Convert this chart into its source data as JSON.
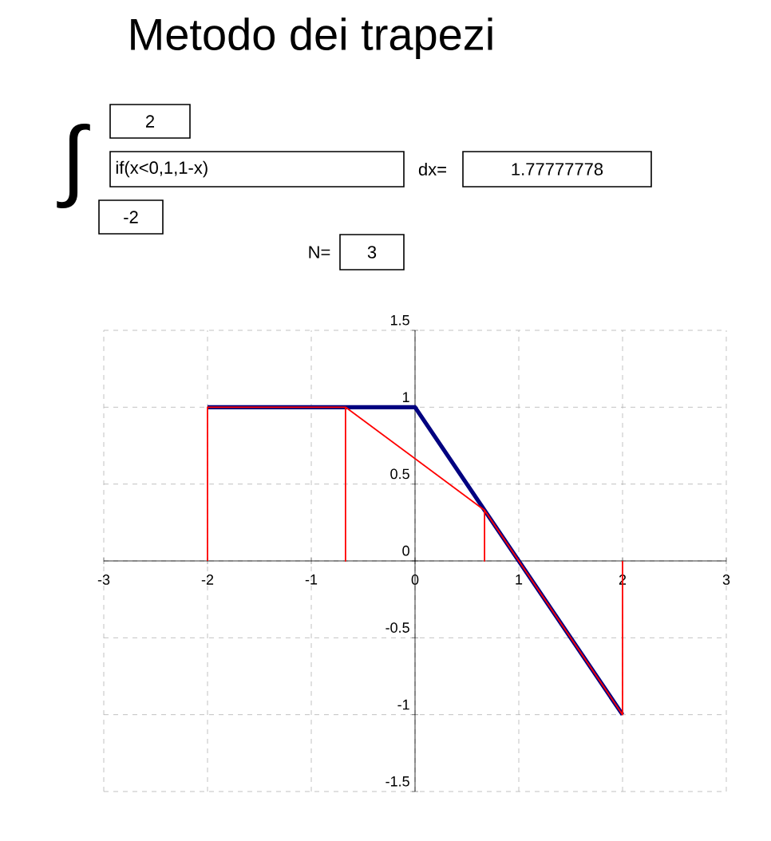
{
  "chart_data": {
    "type": "line",
    "title": "Metodo dei trapezi",
    "annotations": [
      "∫",
      "2",
      "if(x<0,1,1-x)",
      "dx=",
      "1.77777778",
      "-2",
      "N=",
      "3"
    ],
    "series": [
      {
        "color": "#000080",
        "x": [
          -2,
          0,
          2
        ],
        "values": [
          1,
          1,
          -1
        ]
      },
      {
        "color": "#ff0000",
        "x": [
          -2,
          -2,
          -0.67,
          -0.67,
          -0.67,
          0.67,
          0.67,
          0.67,
          2,
          2
        ],
        "values": [
          0,
          1,
          1,
          0,
          1,
          0.33,
          0,
          0.33,
          -1,
          0
        ]
      }
    ],
    "xlim": [
      -3,
      3
    ],
    "ylim": [
      -1.5,
      1.5
    ],
    "xticks": [
      -3,
      -2,
      -1,
      0,
      1,
      2,
      3
    ],
    "yticks": [
      -1.5,
      -1,
      -0.5,
      0,
      0.5,
      1,
      1.5
    ],
    "grid": true,
    "marker": "none",
    "line_style": "solid"
  }
}
